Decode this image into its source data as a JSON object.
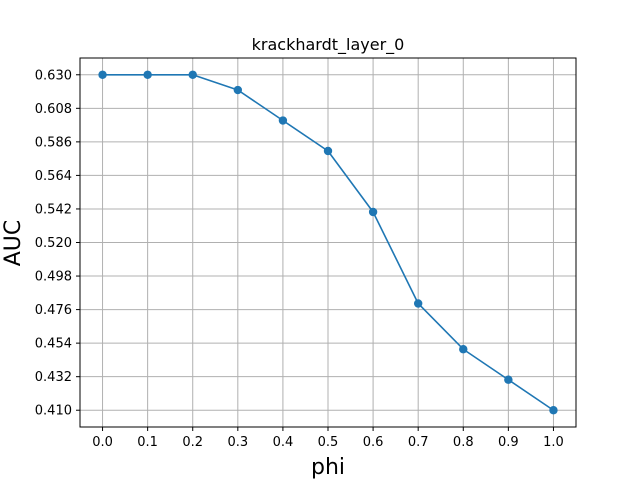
{
  "chart_data": {
    "type": "line",
    "title": "krackhardt_layer_0",
    "xlabel": "phi",
    "ylabel": "AUC",
    "x": [
      0.0,
      0.1,
      0.2,
      0.3,
      0.4,
      0.5,
      0.6,
      0.7,
      0.8,
      0.9,
      1.0
    ],
    "xticks": [
      "0.0",
      "0.1",
      "0.2",
      "0.3",
      "0.4",
      "0.5",
      "0.6",
      "0.7",
      "0.8",
      "0.9",
      "1.0"
    ],
    "yticks": [
      "0.630",
      "0.608",
      "0.586",
      "0.564",
      "0.542",
      "0.520",
      "0.498",
      "0.476",
      "0.454",
      "0.432",
      "0.410"
    ],
    "xlim": [
      -0.05,
      1.05
    ],
    "ylim": [
      0.399,
      0.641
    ],
    "grid": true,
    "series": [
      {
        "color": "#1f77b4",
        "marker": "circle",
        "values": [
          0.63,
          0.63,
          0.63,
          0.62,
          0.6,
          0.58,
          0.54,
          0.48,
          0.45,
          0.43,
          0.41
        ]
      }
    ]
  }
}
